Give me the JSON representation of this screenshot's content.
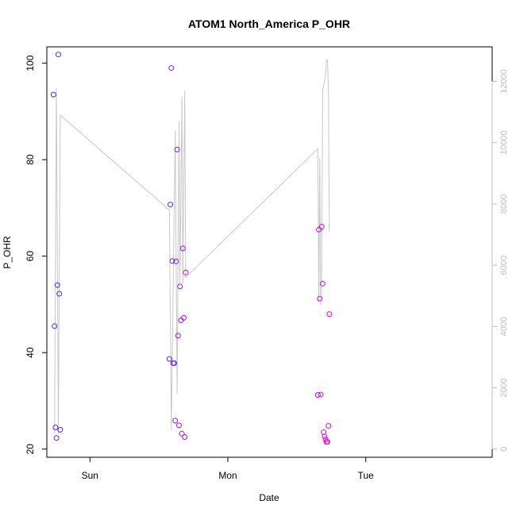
{
  "chart_data": {
    "type": "scatter",
    "title": "ATOM1 North_America P_OHR",
    "xlabel": "Date",
    "ylabel": "P_OHR",
    "x_axis": {
      "kind": "date",
      "range": [
        "2015-04-04 16:30",
        "2015-04-07 22:00"
      ],
      "ticks": [
        {
          "label": "Sun",
          "at": "2015-04-05 00:00"
        },
        {
          "label": "Mon",
          "at": "2015-04-06 00:00"
        },
        {
          "label": "Tue",
          "at": "2015-04-07 00:00"
        }
      ]
    },
    "ylim": [
      20,
      100
    ],
    "y_ticks": [
      20,
      40,
      60,
      80,
      100
    ],
    "y2_axis": {
      "ticks": [
        0,
        2000,
        4000,
        6000,
        8000,
        10000,
        12000
      ],
      "color": "#bebebe"
    },
    "grid": false,
    "series": [
      {
        "kind": "points",
        "axis": "left",
        "color_start": "#3a2cff",
        "color_end": "#ff00e6",
        "points": [
          {
            "x": "2015-04-04 17:40",
            "y": 93.5
          },
          {
            "x": "2015-04-04 17:50",
            "y": 45.5
          },
          {
            "x": "2015-04-04 18:00",
            "y": 24.5
          },
          {
            "x": "2015-04-04 18:10",
            "y": 22.3
          },
          {
            "x": "2015-04-04 18:20",
            "y": 54.0
          },
          {
            "x": "2015-04-04 18:30",
            "y": 101.8
          },
          {
            "x": "2015-04-04 18:40",
            "y": 52.2
          },
          {
            "x": "2015-04-04 18:50",
            "y": 24.0
          },
          {
            "x": "2015-04-05 13:50",
            "y": 38.7
          },
          {
            "x": "2015-04-05 14:00",
            "y": 70.7
          },
          {
            "x": "2015-04-05 14:10",
            "y": 99.0
          },
          {
            "x": "2015-04-05 14:20",
            "y": 59.0
          },
          {
            "x": "2015-04-05 14:30",
            "y": 37.8
          },
          {
            "x": "2015-04-05 14:40",
            "y": 37.8
          },
          {
            "x": "2015-04-05 14:50",
            "y": 25.9
          },
          {
            "x": "2015-04-05 15:00",
            "y": 58.9
          },
          {
            "x": "2015-04-05 15:10",
            "y": 82.1
          },
          {
            "x": "2015-04-05 15:20",
            "y": 43.5
          },
          {
            "x": "2015-04-05 15:30",
            "y": 24.9
          },
          {
            "x": "2015-04-05 15:40",
            "y": 53.7
          },
          {
            "x": "2015-04-05 15:50",
            "y": 46.7
          },
          {
            "x": "2015-04-05 16:00",
            "y": 23.2
          },
          {
            "x": "2015-04-05 16:10",
            "y": 61.6
          },
          {
            "x": "2015-04-05 16:20",
            "y": 47.2
          },
          {
            "x": "2015-04-05 16:30",
            "y": 22.5
          },
          {
            "x": "2015-04-05 16:40",
            "y": 56.6
          },
          {
            "x": "2015-04-06 15:40",
            "y": 31.2
          },
          {
            "x": "2015-04-06 15:50",
            "y": 65.5
          },
          {
            "x": "2015-04-06 16:00",
            "y": 51.2
          },
          {
            "x": "2015-04-06 16:10",
            "y": 31.3
          },
          {
            "x": "2015-04-06 16:20",
            "y": 66.1
          },
          {
            "x": "2015-04-06 16:30",
            "y": 54.3
          },
          {
            "x": "2015-04-06 16:40",
            "y": 23.5
          },
          {
            "x": "2015-04-06 16:50",
            "y": 22.6
          },
          {
            "x": "2015-04-06 17:00",
            "y": 22.0
          },
          {
            "x": "2015-04-06 17:10",
            "y": 21.5
          },
          {
            "x": "2015-04-06 17:20",
            "y": 21.5
          },
          {
            "x": "2015-04-06 17:30",
            "y": 24.8
          },
          {
            "x": "2015-04-06 17:40",
            "y": 48.0
          }
        ]
      },
      {
        "kind": "line",
        "axis": "right",
        "color": "#c8c8c8",
        "points": [
          {
            "x": "2015-04-04 17:50",
            "y": 500
          },
          {
            "x": "2015-04-04 18:10",
            "y": 11800
          },
          {
            "x": "2015-04-04 18:30",
            "y": 500
          },
          {
            "x": "2015-04-04 18:50",
            "y": 10900
          },
          {
            "x": "2015-04-05 13:50",
            "y": 7800
          },
          {
            "x": "2015-04-05 14:10",
            "y": 600
          },
          {
            "x": "2015-04-05 14:30",
            "y": 5600
          },
          {
            "x": "2015-04-05 14:50",
            "y": 10400
          },
          {
            "x": "2015-04-05 15:10",
            "y": 1800
          },
          {
            "x": "2015-04-05 15:30",
            "y": 10700
          },
          {
            "x": "2015-04-05 15:40",
            "y": 5400
          },
          {
            "x": "2015-04-05 16:00",
            "y": 11500
          },
          {
            "x": "2015-04-05 16:10",
            "y": 5400
          },
          {
            "x": "2015-04-05 16:30",
            "y": 11700
          },
          {
            "x": "2015-04-05 16:40",
            "y": 5600
          },
          {
            "x": "2015-04-06 15:40",
            "y": 9800
          },
          {
            "x": "2015-04-06 15:50",
            "y": 4800
          },
          {
            "x": "2015-04-06 16:00",
            "y": 9500
          },
          {
            "x": "2015-04-06 16:10",
            "y": 4700
          },
          {
            "x": "2015-04-06 16:20",
            "y": 6000
          },
          {
            "x": "2015-04-06 16:30",
            "y": 11700
          },
          {
            "x": "2015-04-06 17:00",
            "y": 12200
          },
          {
            "x": "2015-04-06 17:10",
            "y": 12700
          },
          {
            "x": "2015-04-06 17:20",
            "y": 12700
          },
          {
            "x": "2015-04-06 17:30",
            "y": 11700
          },
          {
            "x": "2015-04-06 17:40",
            "y": 7100
          }
        ]
      }
    ]
  }
}
